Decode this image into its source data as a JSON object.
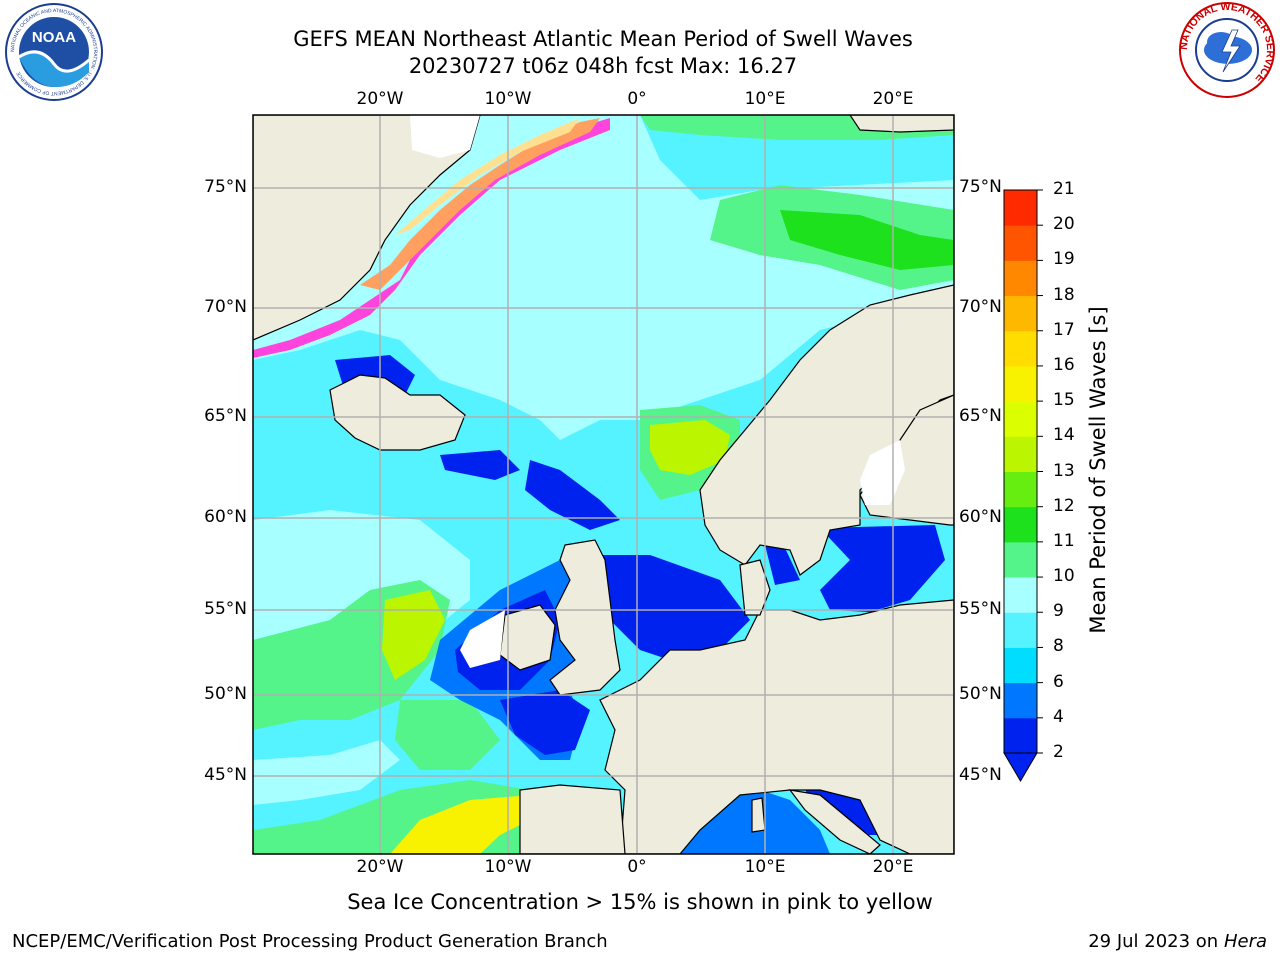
{
  "header": {
    "title_line1": "GEFS MEAN Northeast Atlantic Mean Period of Swell Waves",
    "title_line2": "20230727 t06z 048h fcst   Max: 16.27"
  },
  "map": {
    "projection": "lat-lon",
    "lon_range": [
      -30,
      25
    ],
    "lat_range": [
      41,
      78
    ],
    "grid": true,
    "lon_ticks": [
      "20°W",
      "10°W",
      "0°",
      "10°E",
      "20°E"
    ],
    "lat_ticks": [
      "75°N",
      "70°N",
      "65°N",
      "60°N",
      "55°N",
      "50°N",
      "45°N"
    ],
    "land_color": "#eeecdd",
    "sea_ice_colors": [
      "#ff44dd",
      "#ffa060",
      "#ffe090"
    ]
  },
  "colorbar": {
    "label": "Mean Period of Swell Waves [s]",
    "ticks": [
      "2",
      "4",
      "6",
      "8",
      "9",
      "10",
      "11",
      "12",
      "13",
      "14",
      "15",
      "16",
      "17",
      "18",
      "19",
      "20",
      "21"
    ],
    "colors": [
      "#0022ee",
      "#0077ff",
      "#00ddff",
      "#55f2ff",
      "#a8ffff",
      "#55f48a",
      "#1ee11e",
      "#66ee10",
      "#bbf500",
      "#dcff00",
      "#f8f200",
      "#ffdd00",
      "#ffb800",
      "#ff8800",
      "#ff5500",
      "#ff2a00"
    ],
    "extend": "min"
  },
  "note": "Sea Ice Concentration > 15% is shown in pink to yellow",
  "footer": {
    "left": "NCEP/EMC/Verification Post Processing Product Generation Branch",
    "right_date": "29 Jul 2023 on ",
    "right_host": "Hera"
  },
  "logos": {
    "noaa_text": "NOAA",
    "noaa_ring_text": "NATIONAL OCEANIC AND ATMOSPHERIC ADMINISTRATION · U.S. DEPARTMENT OF COMMERCE",
    "nws_ring_text": "NATIONAL WEATHER SERVICE"
  }
}
